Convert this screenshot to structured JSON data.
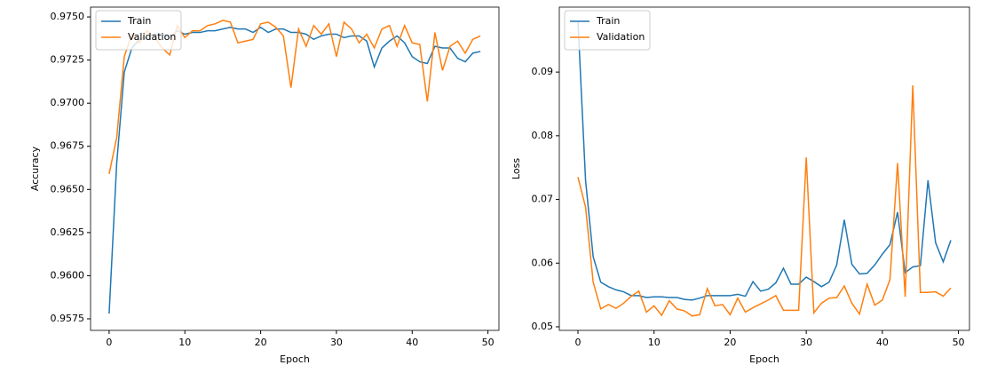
{
  "chart_data": [
    {
      "type": "line",
      "ylabel": "Accuracy",
      "xlabel": "Epoch",
      "x": [
        0,
        1,
        2,
        3,
        4,
        5,
        6,
        7,
        8,
        9,
        10,
        11,
        12,
        13,
        14,
        15,
        16,
        17,
        18,
        19,
        20,
        21,
        22,
        23,
        24,
        25,
        26,
        27,
        28,
        29,
        30,
        31,
        32,
        33,
        34,
        35,
        36,
        37,
        38,
        39,
        40,
        41,
        42,
        43,
        44,
        45,
        46,
        47,
        48,
        49
      ],
      "series": [
        {
          "name": "Train",
          "color": "#1f77b4",
          "values": [
            0.9578,
            0.9665,
            0.9718,
            0.9732,
            0.9737,
            0.9738,
            0.974,
            0.974,
            0.9738,
            0.9742,
            0.974,
            0.9741,
            0.9741,
            0.9742,
            0.9742,
            0.9743,
            0.9744,
            0.9743,
            0.9743,
            0.9741,
            0.9744,
            0.9741,
            0.9743,
            0.9743,
            0.9741,
            0.9741,
            0.974,
            0.9737,
            0.9739,
            0.974,
            0.974,
            0.9738,
            0.9739,
            0.9739,
            0.9736,
            0.9721,
            0.9732,
            0.9736,
            0.9739,
            0.9735,
            0.9727,
            0.9724,
            0.9723,
            0.9733,
            0.9732,
            0.9732,
            0.9726,
            0.9724,
            0.9729,
            0.973
          ]
        },
        {
          "name": "Validation",
          "color": "#ff7f0e",
          "values": [
            0.9659,
            0.968,
            0.9727,
            0.974,
            0.9735,
            0.9742,
            0.9738,
            0.9732,
            0.9728,
            0.9745,
            0.9738,
            0.9742,
            0.9742,
            0.9745,
            0.9746,
            0.9748,
            0.9747,
            0.9735,
            0.9736,
            0.9737,
            0.9746,
            0.9747,
            0.9744,
            0.9739,
            0.9709,
            0.9743,
            0.9733,
            0.9745,
            0.974,
            0.9746,
            0.9727,
            0.9747,
            0.9743,
            0.9735,
            0.974,
            0.9732,
            0.9743,
            0.9745,
            0.9733,
            0.9745,
            0.9735,
            0.9734,
            0.9701,
            0.9741,
            0.9719,
            0.9733,
            0.9736,
            0.9729,
            0.9737,
            0.9739
          ]
        }
      ],
      "xlim": [
        -2.45,
        51.45
      ],
      "xticks": [
        0,
        10,
        20,
        30,
        40,
        50
      ],
      "ylim": [
        0.95683,
        0.97557
      ],
      "yticks": [
        0.9575,
        {
          "value": 0.96,
          "label": "0.9600"
        },
        0.9625,
        {
          "value": 0.965,
          "label": "0.9650"
        },
        0.9675,
        {
          "value": 0.97,
          "label": "0.9700"
        },
        0.9725,
        {
          "value": 0.975,
          "label": "0.9750"
        }
      ],
      "legend": "upper left"
    },
    {
      "type": "line",
      "ylabel": "Loss",
      "xlabel": "Epoch",
      "x": [
        0,
        1,
        2,
        3,
        4,
        5,
        6,
        7,
        8,
        9,
        10,
        11,
        12,
        13,
        14,
        15,
        16,
        17,
        18,
        19,
        20,
        21,
        22,
        23,
        24,
        25,
        26,
        27,
        28,
        29,
        30,
        31,
        32,
        33,
        34,
        35,
        36,
        37,
        38,
        39,
        40,
        41,
        42,
        43,
        44,
        45,
        46,
        47,
        48,
        49
      ],
      "series": [
        {
          "name": "Train",
          "color": "#1f77b4",
          "values": [
            0.098,
            0.073,
            0.061,
            0.057,
            0.0563,
            0.0558,
            0.0555,
            0.0549,
            0.0549,
            0.0546,
            0.0547,
            0.0547,
            0.0546,
            0.0546,
            0.0543,
            0.0542,
            0.0545,
            0.0549,
            0.0549,
            0.0549,
            0.0549,
            0.0551,
            0.0548,
            0.0571,
            0.0556,
            0.0559,
            0.0569,
            0.0592,
            0.0567,
            0.0567,
            0.0578,
            0.0571,
            0.0563,
            0.057,
            0.0597,
            0.0668,
            0.0598,
            0.0583,
            0.0584,
            0.0597,
            0.0614,
            0.0629,
            0.068,
            0.0585,
            0.0594,
            0.0596,
            0.073,
            0.0632,
            0.0602,
            0.0636
          ]
        },
        {
          "name": "Validation",
          "color": "#ff7f0e",
          "values": [
            0.0735,
            0.0688,
            0.057,
            0.0528,
            0.0535,
            0.0529,
            0.0537,
            0.0548,
            0.0556,
            0.0523,
            0.0533,
            0.0518,
            0.0541,
            0.0528,
            0.0525,
            0.0517,
            0.0519,
            0.056,
            0.0533,
            0.0535,
            0.0519,
            0.0545,
            0.0523,
            0.053,
            0.0536,
            0.0542,
            0.0549,
            0.0526,
            0.0526,
            0.0526,
            0.0766,
            0.0522,
            0.0537,
            0.0545,
            0.0546,
            0.0564,
            0.0537,
            0.052,
            0.0567,
            0.0534,
            0.0542,
            0.0574,
            0.0757,
            0.0547,
            0.0879,
            0.0554,
            0.0554,
            0.0555,
            0.0548,
            0.0561
          ]
        }
      ],
      "xlim": [
        -2.45,
        51.45
      ],
      "xticks": [
        0,
        10,
        20,
        30,
        40,
        50
      ],
      "ylim": [
        0.04944,
        0.1002
      ],
      "yticks": [
        0.05,
        0.06,
        0.07,
        0.08,
        0.09
      ],
      "legend": "upper left"
    }
  ]
}
